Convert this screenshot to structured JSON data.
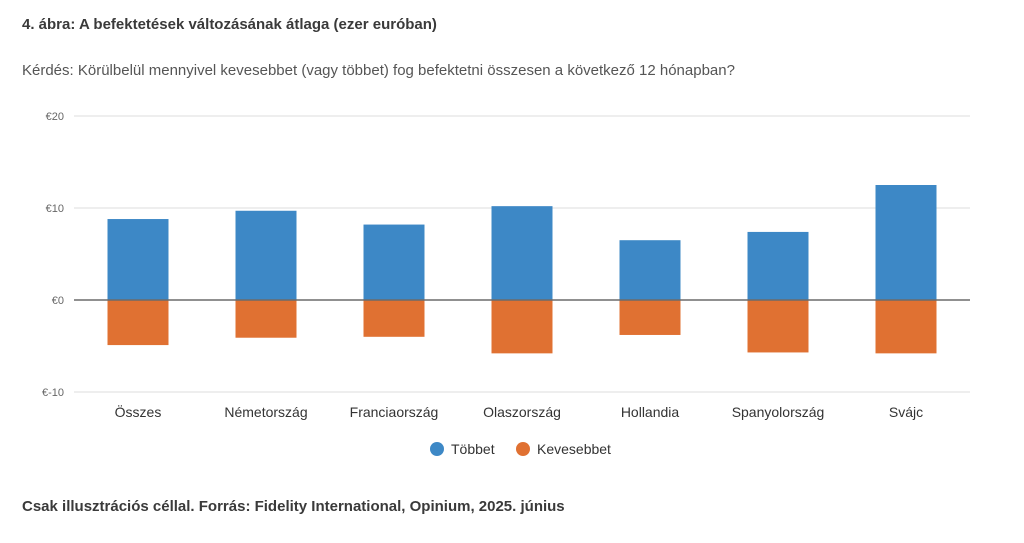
{
  "title": "4. ábra: A befektetések változásának átlaga (ezer euróban)",
  "subtitle": "Kérdés: Körülbelül mennyivel kevesebbet (vagy többet) fog befektetni összesen a következő 12 hónapban?",
  "source": "Csak illusztrációs céllal. Forrás: Fidelity International, Opinium, 2025. június",
  "chart_data": {
    "type": "bar",
    "categories": [
      "Összes",
      "Németország",
      "Franciaország",
      "Olaszország",
      "Hollandia",
      "Spanyolország",
      "Svájc"
    ],
    "series": [
      {
        "name": "Többet",
        "color": "#3d88c6",
        "values": [
          8.8,
          9.7,
          8.2,
          10.2,
          6.5,
          7.4,
          12.5
        ]
      },
      {
        "name": "Kevesebbet",
        "color": "#e07132",
        "values": [
          -4.9,
          -4.1,
          -4.0,
          -5.8,
          -3.8,
          -5.7,
          -5.8
        ]
      }
    ],
    "ylim": [
      -10,
      20
    ],
    "yticks": [
      20,
      10,
      0,
      -10
    ],
    "ytick_labels": [
      "€20",
      "€10",
      "€0",
      "€-10"
    ],
    "grid": true,
    "stacked": true,
    "legend_position": "bottom-center"
  }
}
